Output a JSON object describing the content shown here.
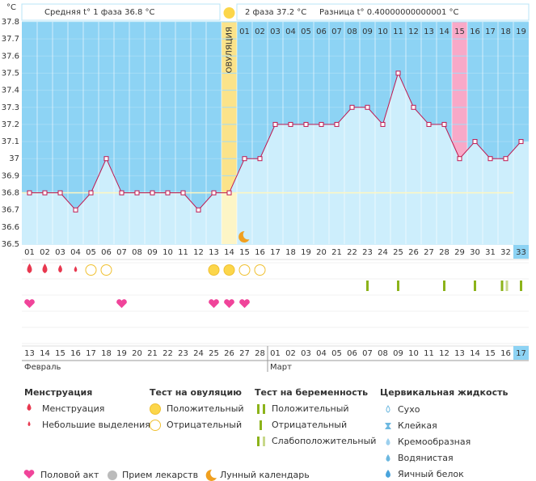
{
  "chart_data": {
    "type": "line",
    "y_label": "°C",
    "stats": {
      "phase1": "Средняя t° 1 фаза 36.8 °C",
      "phase2": "2 фаза 37.2 °C",
      "diff": "Разница t° 0.40000000000001 °C"
    },
    "ovulation_label": "ОВУЛЯЦИЯ",
    "ovulation_day": 14,
    "highlight_day": 29,
    "current_day": 33,
    "moon_day": 15,
    "coverline": 36.8,
    "categories": [
      "01",
      "02",
      "03",
      "04",
      "05",
      "06",
      "07",
      "08",
      "09",
      "10",
      "11",
      "12",
      "13",
      "14",
      "15",
      "16",
      "17",
      "18",
      "19",
      "20",
      "21",
      "22",
      "23",
      "24",
      "25",
      "26",
      "27",
      "28",
      "29",
      "30",
      "31",
      "32",
      "33"
    ],
    "phase2_days": [
      "01",
      "02",
      "03",
      "04",
      "05",
      "06",
      "07",
      "08",
      "09",
      "10",
      "11",
      "12",
      "13",
      "14",
      "15",
      "16",
      "17",
      "18",
      "19"
    ],
    "series": [
      {
        "name": "Температура",
        "color": "#c0174f",
        "values": [
          36.8,
          36.8,
          36.8,
          36.7,
          36.8,
          37.0,
          36.8,
          36.8,
          36.8,
          36.8,
          36.8,
          36.7,
          36.8,
          36.8,
          37.0,
          37.0,
          37.2,
          37.2,
          37.2,
          37.2,
          37.2,
          37.3,
          37.3,
          37.2,
          37.5,
          37.3,
          37.2,
          37.2,
          37.0,
          37.1,
          37.0,
          37.0,
          37.1
        ]
      }
    ],
    "ylim": [
      36.5,
      37.8
    ],
    "yticks": [
      36.5,
      36.6,
      36.7,
      36.8,
      36.9,
      37,
      37.1,
      37.2,
      37.3,
      37.4,
      37.5,
      37.6,
      37.7,
      37.8
    ],
    "grid": true,
    "dates": [
      {
        "label": "13",
        "color": "#333"
      },
      {
        "label": "14",
        "color": "#d0103a"
      },
      {
        "label": "15",
        "color": "#d0103a"
      },
      {
        "label": "16",
        "color": "#333"
      },
      {
        "label": "17",
        "color": "#333"
      },
      {
        "label": "18",
        "color": "#333"
      },
      {
        "label": "19",
        "color": "#333"
      },
      {
        "label": "20",
        "color": "#333"
      },
      {
        "label": "21",
        "color": "#d0103a"
      },
      {
        "label": "22",
        "color": "#d0103a"
      },
      {
        "label": "23",
        "color": "#333"
      },
      {
        "label": "24",
        "color": "#333"
      },
      {
        "label": "25",
        "color": "#333"
      },
      {
        "label": "26",
        "color": "#333"
      },
      {
        "label": "27",
        "color": "#333"
      },
      {
        "label": "28",
        "color": "#d0103a"
      },
      {
        "label": "01",
        "color": "#d0103a"
      },
      {
        "label": "02",
        "color": "#333"
      },
      {
        "label": "03",
        "color": "#333"
      },
      {
        "label": "04",
        "color": "#333"
      },
      {
        "label": "05",
        "color": "#333"
      },
      {
        "label": "06",
        "color": "#333"
      },
      {
        "label": "07",
        "color": "#d0103a"
      },
      {
        "label": "08",
        "color": "#d0103a"
      },
      {
        "label": "09",
        "color": "#333"
      },
      {
        "label": "10",
        "color": "#333"
      },
      {
        "label": "11",
        "color": "#333"
      },
      {
        "label": "12",
        "color": "#333"
      },
      {
        "label": "13",
        "color": "#333"
      },
      {
        "label": "14",
        "color": "#d0103a"
      },
      {
        "label": "15",
        "color": "#d0103a"
      },
      {
        "label": "16",
        "color": "#333"
      },
      {
        "label": "17",
        "color": "#333"
      }
    ],
    "months": [
      {
        "label": "Февраль",
        "day": 1
      },
      {
        "label": "Март",
        "day": 17
      }
    ],
    "menstruation": [
      "heavy",
      "heavy",
      "heavy",
      "light",
      null,
      null,
      null,
      null,
      null,
      null,
      null,
      null,
      null,
      null,
      null,
      null,
      null,
      null,
      null,
      null,
      null,
      null,
      null,
      null,
      null,
      null,
      null,
      null,
      null,
      null,
      null,
      null,
      null
    ],
    "ovulation_test": [
      null,
      null,
      null,
      null,
      "negative",
      "negative",
      null,
      null,
      null,
      null,
      null,
      null,
      "positive",
      "positive",
      "negative",
      "negative",
      null,
      null,
      null,
      null,
      null,
      null,
      null,
      null,
      null,
      null,
      null,
      null,
      null,
      null,
      null,
      null,
      null
    ],
    "pregnancy_test": [
      null,
      null,
      null,
      null,
      null,
      null,
      null,
      null,
      null,
      null,
      null,
      null,
      null,
      null,
      null,
      null,
      null,
      null,
      null,
      null,
      null,
      null,
      "negative",
      null,
      "negative",
      null,
      null,
      "negative",
      null,
      "negative",
      null,
      "weak",
      "negative"
    ],
    "intercourse": [
      true,
      false,
      false,
      false,
      false,
      false,
      true,
      false,
      false,
      false,
      false,
      false,
      true,
      true,
      true,
      false,
      false,
      false,
      false,
      false,
      false,
      false,
      false,
      false,
      false,
      false,
      false,
      false,
      false,
      false,
      false,
      false,
      false
    ]
  },
  "legend": {
    "menstruation": {
      "title": "Менструация",
      "items": [
        "Менструация",
        "Небольшие выделения"
      ]
    },
    "ovulation_test": {
      "title": "Тест на овуляцию",
      "items": [
        "Положительный",
        "Отрицательный"
      ]
    },
    "pregnancy_test": {
      "title": "Тест на беременность",
      "items": [
        "Положительный",
        "Отрицательный",
        "Слабоположительный"
      ]
    },
    "cervical": {
      "title": "Цервикальная жидкость",
      "items": [
        "Сухо",
        "Клейкая",
        "Кремообразная",
        "Водянистая",
        "Яичный белок"
      ]
    },
    "other": [
      "Половой акт",
      "Прием лекарств",
      "Лунный календарь"
    ]
  }
}
